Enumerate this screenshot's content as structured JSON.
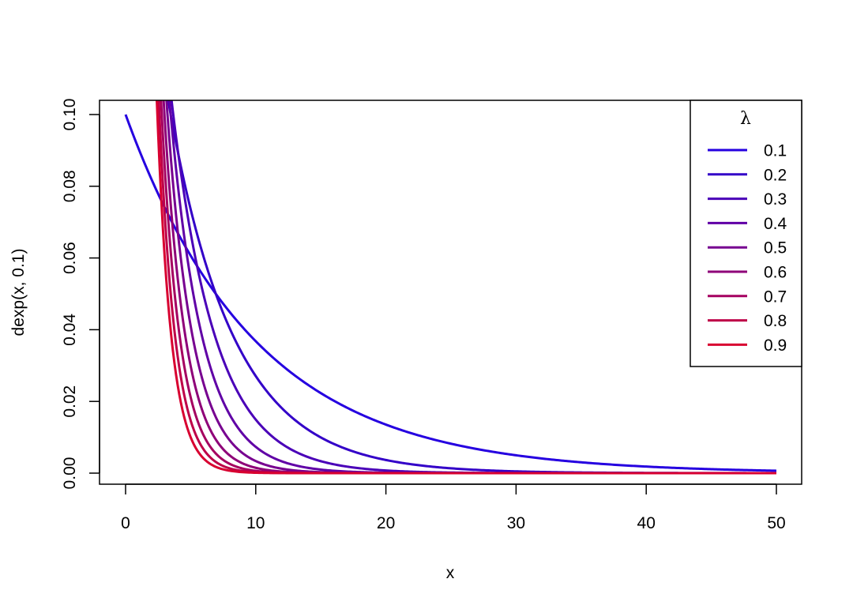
{
  "chart_data": {
    "type": "line",
    "title": "",
    "xlabel": "x",
    "ylabel": "dexp(x, 0.1)",
    "xlim": [
      0,
      50
    ],
    "ylim": [
      0,
      0.1
    ],
    "x_ticks": [
      0,
      10,
      20,
      30,
      40,
      50
    ],
    "x_tick_labels": [
      "0",
      "10",
      "20",
      "30",
      "40",
      "50"
    ],
    "y_ticks": [
      0.0,
      0.02,
      0.04,
      0.06,
      0.08,
      0.1
    ],
    "y_tick_labels": [
      "0.00",
      "0.02",
      "0.04",
      "0.06",
      "0.08",
      "0.10"
    ],
    "grid": false,
    "legend": {
      "title": "λ",
      "placement": "top-right"
    },
    "curve": "rate * exp(-rate * x)",
    "x_sample": [
      0,
      2.5,
      5,
      7.5,
      10,
      12.5,
      15,
      17.5,
      20,
      22.5,
      25,
      27.5,
      30,
      32.5,
      35,
      37.5,
      40,
      42.5,
      45,
      47.5,
      50
    ],
    "series": [
      {
        "name": "0.1",
        "rate": 0.1,
        "color": "#2500E0"
      },
      {
        "name": "0.2",
        "rate": 0.2,
        "color": "#3300C8"
      },
      {
        "name": "0.3",
        "rate": 0.3,
        "color": "#4A00B8"
      },
      {
        "name": "0.4",
        "rate": 0.4,
        "color": "#6000A6"
      },
      {
        "name": "0.5",
        "rate": 0.5,
        "color": "#770090"
      },
      {
        "name": "0.6",
        "rate": 0.6,
        "color": "#8E0078"
      },
      {
        "name": "0.7",
        "rate": 0.7,
        "color": "#A50060"
      },
      {
        "name": "0.8",
        "rate": 0.8,
        "color": "#BE0048"
      },
      {
        "name": "0.9",
        "rate": 0.9,
        "color": "#D80030"
      }
    ]
  }
}
